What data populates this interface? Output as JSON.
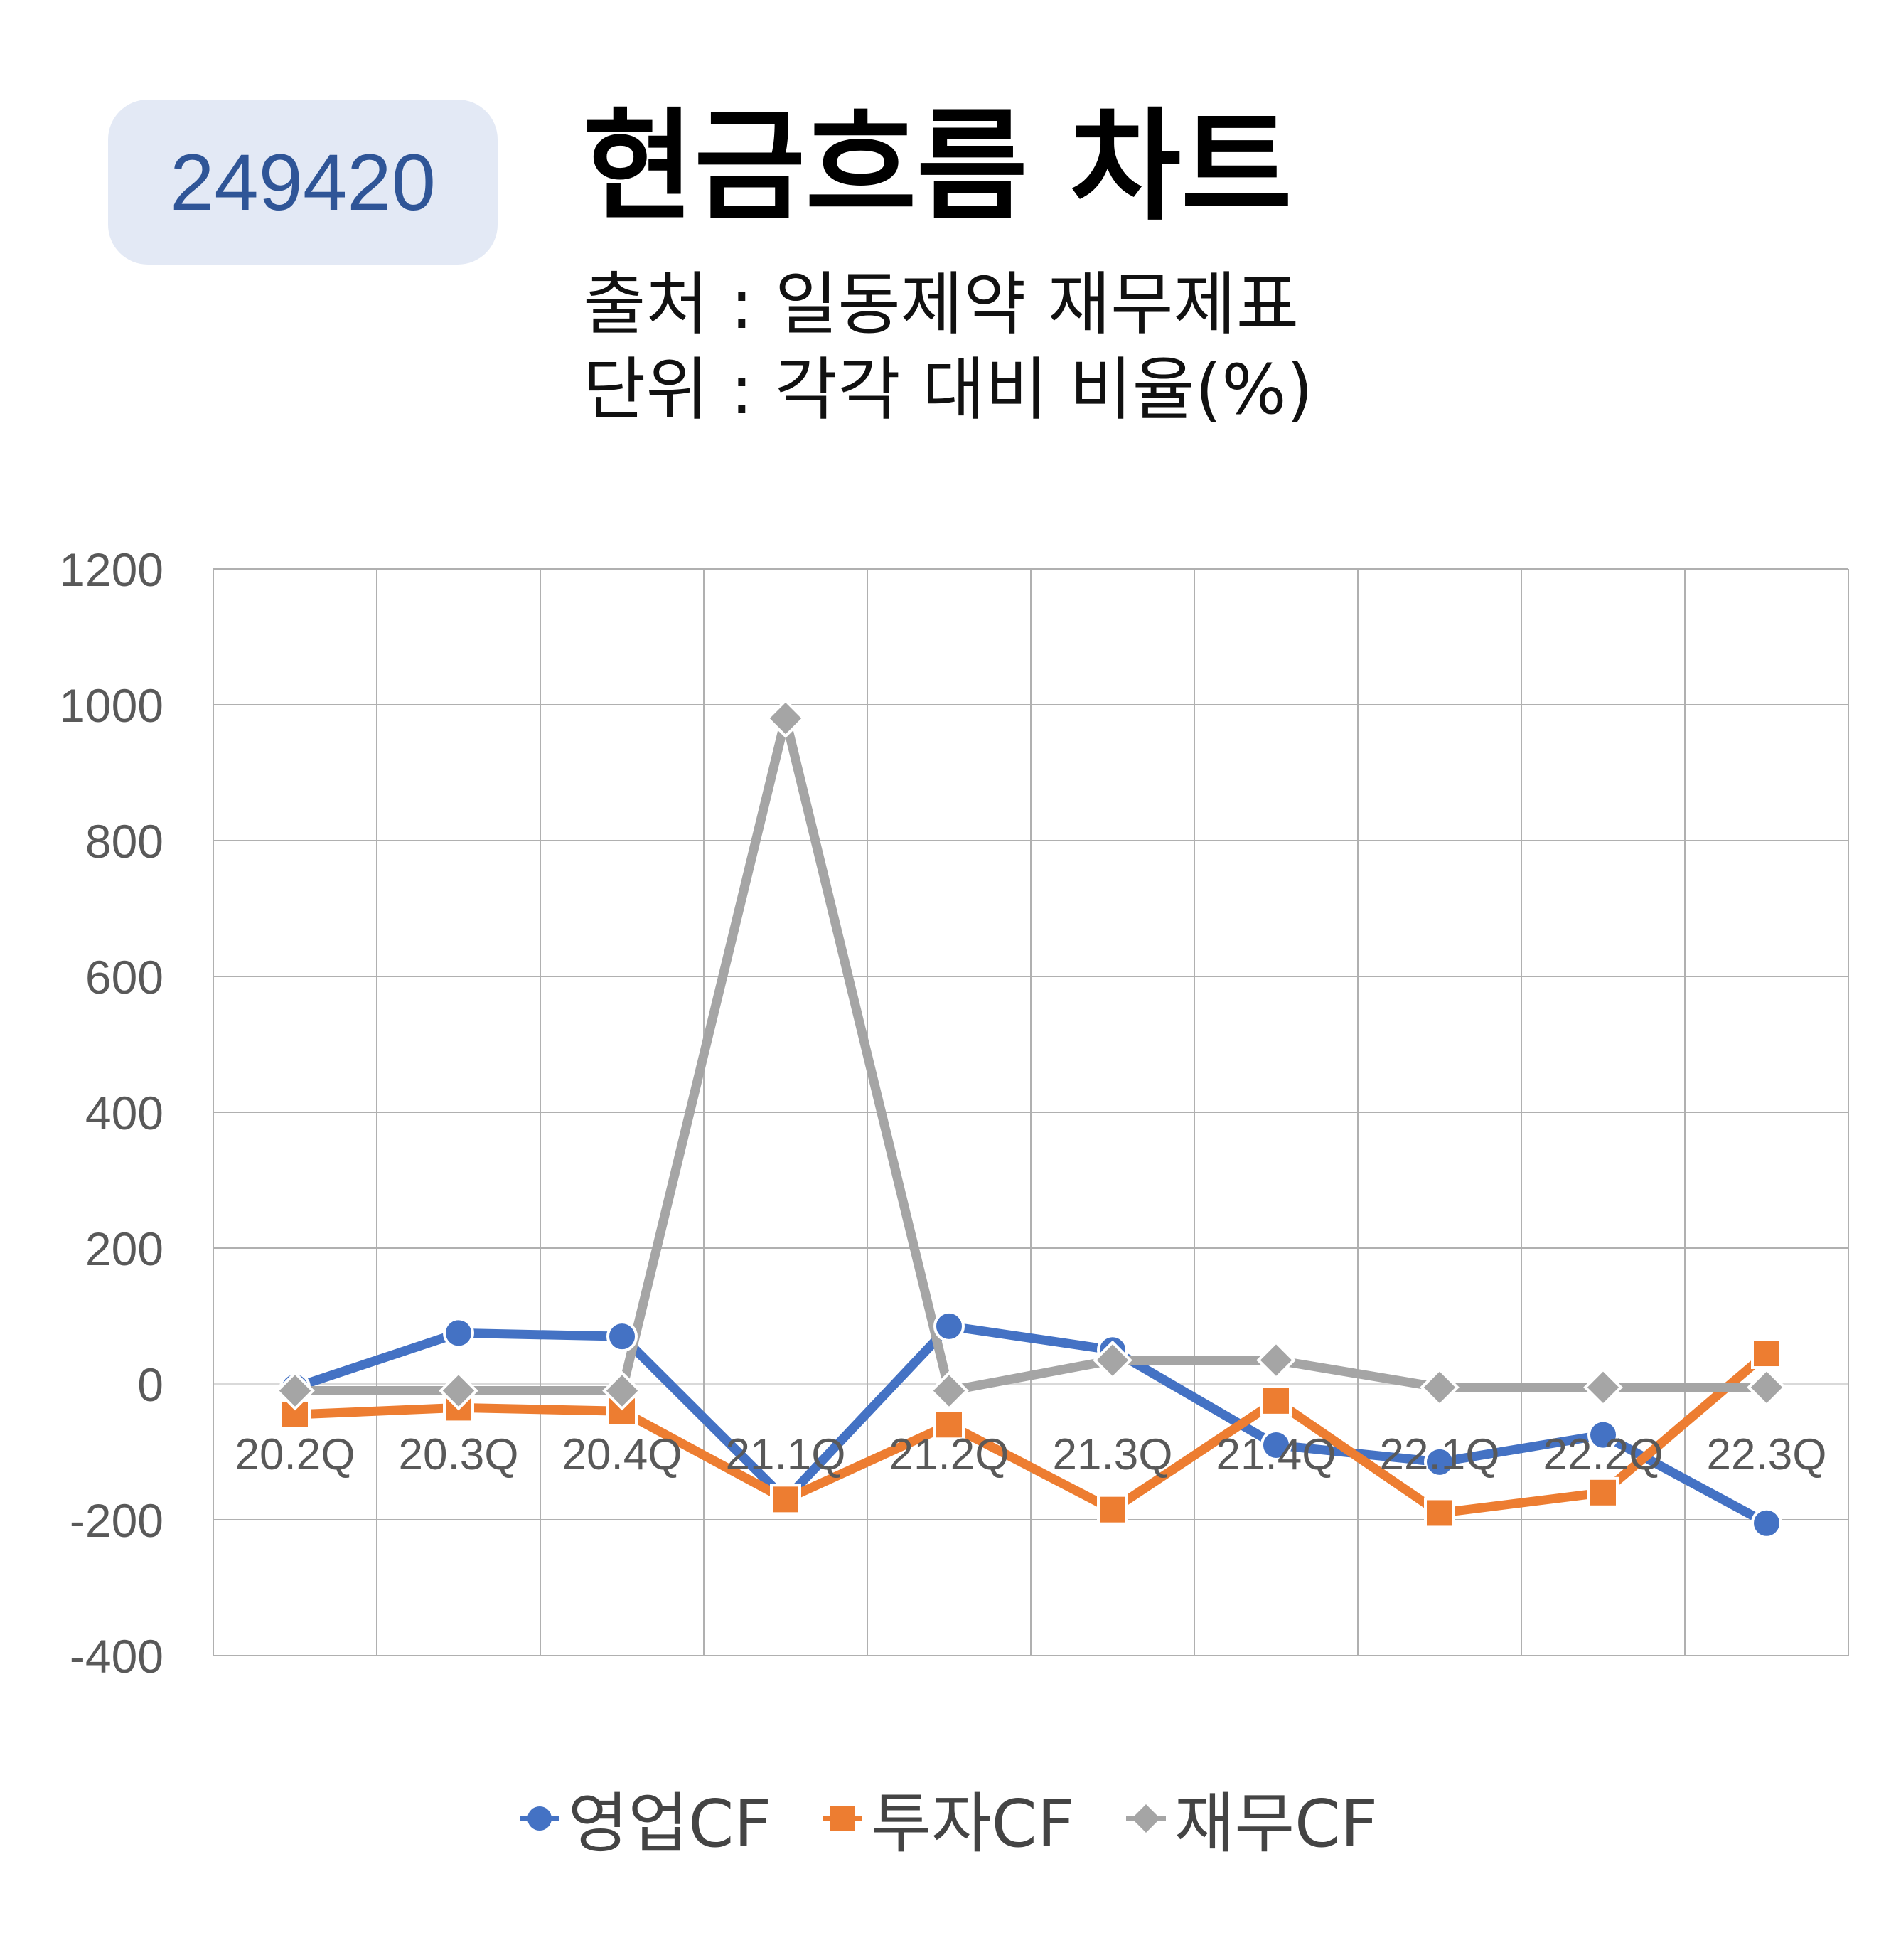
{
  "badge": {
    "code": "249420"
  },
  "header": {
    "title": "현금흐름 차트",
    "source": "출처 : 일동제약 재무제표",
    "unit": "단위 : 각각 대비 비율(%)"
  },
  "colors": {
    "operating": "#4472c4",
    "investing": "#ed7d31",
    "financing": "#a5a5a5",
    "grid": "#b0b0b0",
    "tick": "#595959"
  },
  "chart_data": {
    "type": "line",
    "categories": [
      "20.2Q",
      "20.3Q",
      "20.4Q",
      "21.1Q",
      "21.2Q",
      "21.3Q",
      "21.4Q",
      "22.1Q",
      "22.2Q",
      "22.3Q"
    ],
    "ylim": [
      -400,
      1200
    ],
    "yticks": [
      -400,
      -200,
      0,
      200,
      400,
      600,
      800,
      1000,
      1200
    ],
    "grid": true,
    "legend_position": "bottom",
    "series": [
      {
        "name": "영업CF",
        "marker": "circle",
        "color": "#4472c4",
        "values": [
          -5,
          75,
          70,
          -170,
          85,
          50,
          -90,
          -115,
          -75,
          -205
        ]
      },
      {
        "name": "투자CF",
        "marker": "square",
        "color": "#ed7d31",
        "values": [
          -45,
          -35,
          -40,
          -170,
          -60,
          -185,
          -25,
          -190,
          -160,
          45
        ]
      },
      {
        "name": "재무CF",
        "marker": "diamond",
        "color": "#a5a5a5",
        "values": [
          -10,
          -10,
          -10,
          980,
          -10,
          35,
          35,
          -5,
          -5,
          -5
        ]
      }
    ]
  }
}
